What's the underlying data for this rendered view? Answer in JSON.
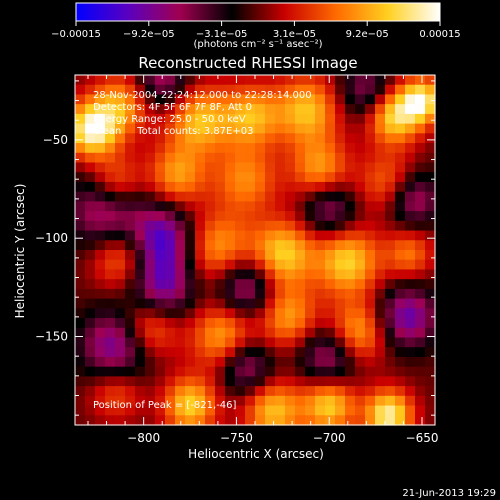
{
  "chart_data": {
    "type": "heatmap",
    "title": "Reconstructed RHESSI Image",
    "xlabel": "Heliocentric X (arcsec)",
    "ylabel": "Heliocentric Y (arcsec)",
    "xlim": [
      -837,
      -643
    ],
    "ylim": [
      -195,
      -17
    ],
    "x_ticks": [
      {
        "value": -800,
        "label": "−800"
      },
      {
        "value": -750,
        "label": "−750"
      },
      {
        "value": -700,
        "label": "−700"
      },
      {
        "value": -650,
        "label": "−650"
      }
    ],
    "y_ticks": [
      {
        "value": -50,
        "label": "−50"
      },
      {
        "value": -100,
        "label": "−100"
      },
      {
        "value": -150,
        "label": "−150"
      }
    ],
    "colorbar": {
      "range": [
        -0.00015,
        0.00015
      ],
      "tick_labels": [
        "−0.00015",
        "−9.2e−05",
        "−3.1e−05",
        "3.1e−05",
        "9.2e−05",
        "0.00015"
      ],
      "unit_label": "(photons cm⁻² s⁻¹ asec⁻²)",
      "colors": [
        "#0000ff",
        "#5a00c0",
        "#a00050",
        "#000000",
        "#c80000",
        "#ff6a00",
        "#ffd020",
        "#ffffff"
      ]
    },
    "info_lines": [
      "28-Nov-2004 22:24:12.000 to 22:28:14.000",
      "Detectors: 4F 5F 6F 7F 8F, Att 0",
      "Energy Range: 25.0 - 50.0 keV",
      "Clean     Total counts: 3.87E+03"
    ],
    "peak_text": "Position of Peak = [-821,-46]",
    "peak": {
      "x": -821,
      "y": -46
    },
    "grid_shape": [
      36,
      36
    ],
    "blobs": [
      {
        "x": -828,
        "y": -45,
        "s": 10,
        "a": 1.7
      },
      {
        "x": -812,
        "y": -32,
        "s": 11,
        "a": 1.0
      },
      {
        "x": -815,
        "y": -72,
        "s": 10,
        "a": 1.0
      },
      {
        "x": -770,
        "y": -40,
        "s": 12,
        "a": 1.2
      },
      {
        "x": -742,
        "y": -38,
        "s": 11,
        "a": 1.1
      },
      {
        "x": -712,
        "y": -35,
        "s": 12,
        "a": 1.2
      },
      {
        "x": -665,
        "y": -38,
        "s": 10,
        "a": 1.4
      },
      {
        "x": -650,
        "y": -30,
        "s": 8,
        "a": 1.5
      },
      {
        "x": -782,
        "y": -68,
        "s": 11,
        "a": 1.0
      },
      {
        "x": -745,
        "y": -70,
        "s": 12,
        "a": 0.9
      },
      {
        "x": -705,
        "y": -65,
        "s": 11,
        "a": 1.0
      },
      {
        "x": -668,
        "y": -72,
        "s": 11,
        "a": 0.8
      },
      {
        "x": -812,
        "y": -110,
        "s": 11,
        "a": 0.9
      },
      {
        "x": -760,
        "y": -105,
        "s": 13,
        "a": 1.0
      },
      {
        "x": -725,
        "y": -108,
        "s": 12,
        "a": 1.3
      },
      {
        "x": -690,
        "y": -112,
        "s": 12,
        "a": 1.3
      },
      {
        "x": -657,
        "y": -108,
        "s": 9,
        "a": 0.8
      },
      {
        "x": -797,
        "y": -145,
        "s": 11,
        "a": 1.0
      },
      {
        "x": -757,
        "y": -150,
        "s": 12,
        "a": 1.1
      },
      {
        "x": -722,
        "y": -140,
        "s": 11,
        "a": 1.0
      },
      {
        "x": -685,
        "y": -148,
        "s": 11,
        "a": 1.1
      },
      {
        "x": -815,
        "y": -178,
        "s": 10,
        "a": 0.7
      },
      {
        "x": -775,
        "y": -185,
        "s": 10,
        "a": 1.3
      },
      {
        "x": -730,
        "y": -188,
        "s": 11,
        "a": 1.2
      },
      {
        "x": -700,
        "y": -185,
        "s": 10,
        "a": 1.3
      },
      {
        "x": -668,
        "y": -190,
        "s": 9,
        "a": 1.6
      },
      {
        "x": -820,
        "y": -85,
        "s": 14,
        "a": -1.1
      },
      {
        "x": -790,
        "y": -100,
        "s": 12,
        "a": -1.3
      },
      {
        "x": -790,
        "y": -125,
        "s": 12,
        "a": -1.2
      },
      {
        "x": -745,
        "y": -125,
        "s": 11,
        "a": -1.1
      },
      {
        "x": -815,
        "y": -155,
        "s": 13,
        "a": -1.2
      },
      {
        "x": -700,
        "y": -85,
        "s": 10,
        "a": -0.9
      },
      {
        "x": -655,
        "y": -80,
        "s": 10,
        "a": -1.0
      },
      {
        "x": -658,
        "y": -140,
        "s": 11,
        "a": -1.2
      },
      {
        "x": -700,
        "y": -160,
        "s": 11,
        "a": -1.0
      },
      {
        "x": -745,
        "y": -165,
        "s": 10,
        "a": -1.0
      },
      {
        "x": -790,
        "y": -20,
        "s": 10,
        "a": -0.9
      },
      {
        "x": -680,
        "y": -25,
        "s": 10,
        "a": -0.8
      }
    ]
  },
  "footer": {
    "timestamp": "21-Jun-2013 19:29"
  }
}
